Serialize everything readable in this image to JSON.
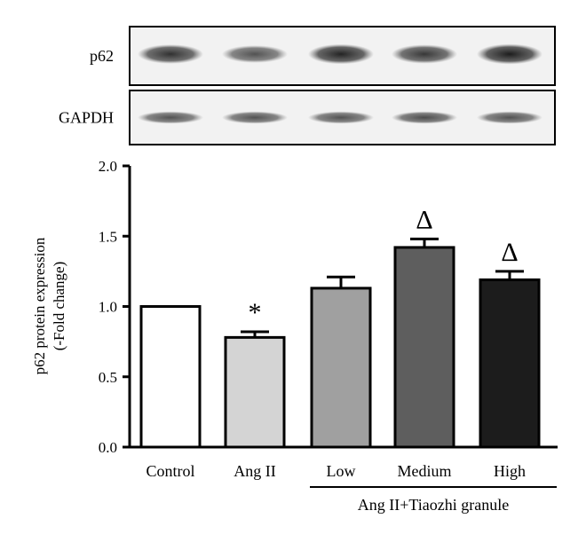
{
  "blot": {
    "rows": [
      {
        "label": "p62",
        "band_intensity": [
          0.85,
          0.6,
          0.95,
          0.8,
          1.0
        ]
      },
      {
        "label": "GAPDH",
        "band_intensity": [
          0.6,
          0.6,
          0.6,
          0.65,
          0.6
        ]
      }
    ]
  },
  "chart_data": {
    "type": "bar",
    "categories": [
      "Control",
      "Ang II",
      "Low",
      "Medium",
      "High"
    ],
    "values": [
      1.0,
      0.78,
      1.13,
      1.42,
      1.19
    ],
    "errors": [
      0.0,
      0.04,
      0.08,
      0.06,
      0.06
    ],
    "annotations": [
      "",
      "*",
      "",
      "Δ",
      "Δ"
    ],
    "bar_colors": [
      "#ffffff",
      "#d4d4d4",
      "#a0a0a0",
      "#5e5e5e",
      "#1c1c1c"
    ],
    "ylabel_line1": "p62 protein expression",
    "ylabel_line2": "(-Fold change)",
    "ylim": [
      0,
      2.0
    ],
    "yticks": [
      "0.0",
      "0.5",
      "1.0",
      "1.5",
      "2.0"
    ],
    "group_label": "Ang II+Tiaozhi granule",
    "group_categories": [
      "Low",
      "Medium",
      "High"
    ]
  }
}
